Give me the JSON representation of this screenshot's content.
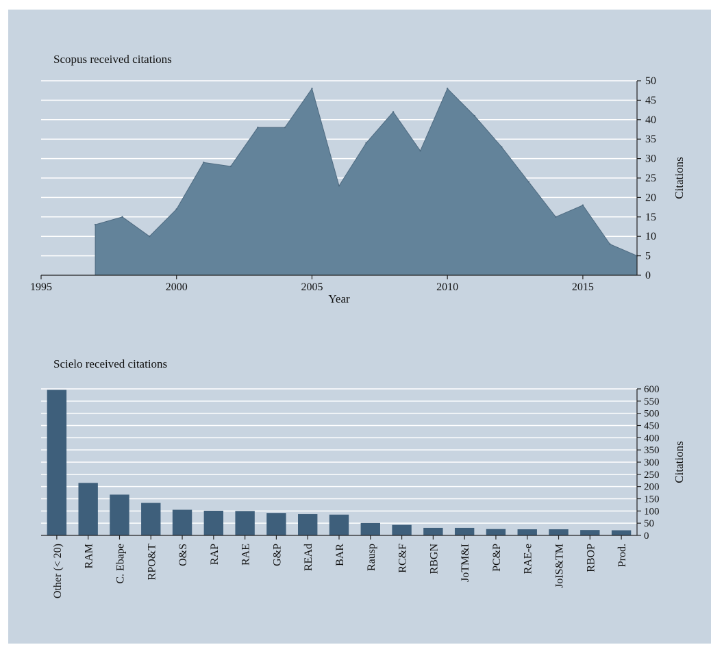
{
  "colors": {
    "background": "#c8d4e0",
    "grid": "#ffffff",
    "area_fill": "#63839a",
    "area_stroke": "#4e6a80",
    "bar_fill": "#3e5f7b"
  },
  "chart_data": [
    {
      "type": "area",
      "title": "Scopus received citations",
      "xlabel": "Year",
      "ylabel": "Citations",
      "x": [
        1997,
        1998,
        1999,
        2000,
        2001,
        2002,
        2003,
        2004,
        2005,
        2006,
        2007,
        2008,
        2009,
        2010,
        2011,
        2012,
        2013,
        2014,
        2015,
        2016,
        2017
      ],
      "values": [
        13,
        15,
        10,
        17,
        29,
        28,
        38,
        38,
        48,
        23,
        34,
        42,
        32,
        48,
        41,
        33,
        24,
        15,
        18,
        8,
        5
      ],
      "xlim": [
        1995,
        2017
      ],
      "ylim": [
        0,
        50
      ],
      "xticks": [
        1995,
        2000,
        2005,
        2010,
        2015
      ],
      "yticks": [
        0,
        5,
        10,
        15,
        20,
        25,
        30,
        35,
        40,
        45,
        50
      ],
      "y_axis_side": "right",
      "grid": true
    },
    {
      "type": "bar",
      "title": "Scielo received citations",
      "xlabel": "",
      "ylabel": "Citations",
      "categories": [
        "Other (< 20)",
        "RAM",
        "C. Ebape",
        "RPO&T",
        "O&S",
        "RAP",
        "RAE",
        "G&P",
        "REAd",
        "BAR",
        "Rausp",
        "RC&F",
        "RBGN",
        "JoTM&I",
        "PC&P",
        "RAE-e",
        "JoIS&TM",
        "RBOP",
        "Prod."
      ],
      "values": [
        596,
        215,
        167,
        133,
        105,
        101,
        100,
        92,
        87,
        85,
        51,
        43,
        31,
        31,
        26,
        25,
        25,
        22,
        21
      ],
      "ylim": [
        0,
        600
      ],
      "yticks": [
        0,
        50,
        100,
        150,
        200,
        250,
        300,
        350,
        400,
        450,
        500,
        550,
        600
      ],
      "y_axis_side": "right",
      "grid": true
    }
  ]
}
